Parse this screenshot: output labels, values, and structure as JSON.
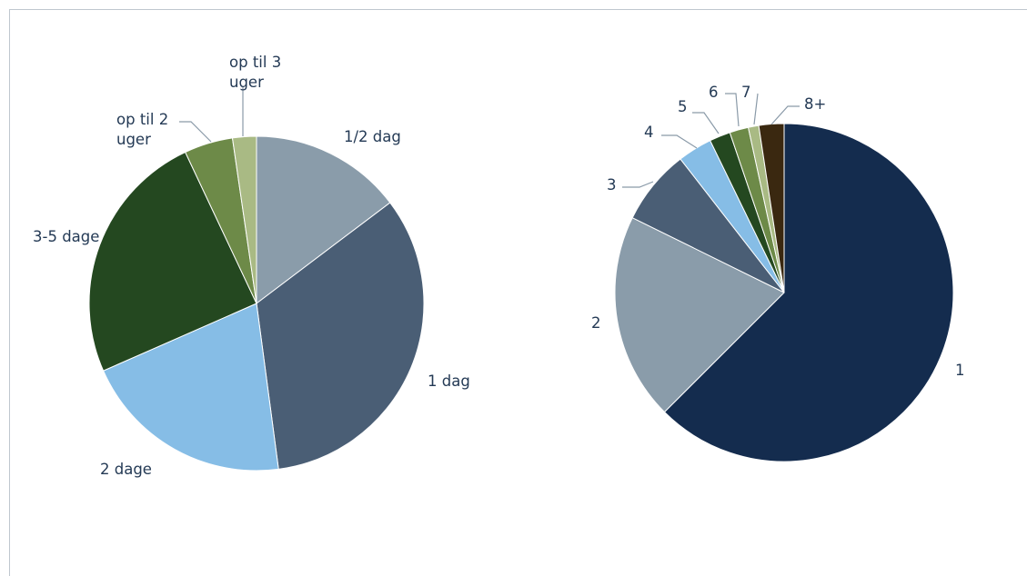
{
  "chart_data": [
    {
      "type": "pie",
      "categories": [
        "1/2 dag",
        "1 dag",
        "2 dage",
        "3-5 dage",
        "op til 2 uger",
        "op til 3 uger"
      ],
      "label_lines": [
        [
          "1/2 dag"
        ],
        [
          "1 dag"
        ],
        [
          "2 dage"
        ],
        [
          "3-5 dage"
        ],
        [
          "op til 2",
          "uger"
        ],
        [
          "op til 3",
          "uger"
        ]
      ],
      "values": [
        14.7,
        33.2,
        20.5,
        24.6,
        4.7,
        2.3
      ],
      "colors": [
        "#8a9caa",
        "#4a5e75",
        "#86bde6",
        "#244820",
        "#6d8a48",
        "#a9ba84"
      ]
    },
    {
      "type": "pie",
      "categories": [
        "1",
        "2",
        "3",
        "4",
        "5",
        "6",
        "7",
        "8+"
      ],
      "label_lines": [
        [
          "1"
        ],
        [
          "2"
        ],
        [
          "3"
        ],
        [
          "4"
        ],
        [
          "5"
        ],
        [
          "6"
        ],
        [
          "7"
        ],
        [
          "8+"
        ]
      ],
      "values": [
        62.5,
        19.8,
        7.2,
        3.3,
        2.0,
        1.8,
        1.0,
        2.4
      ],
      "colors": [
        "#142c4e",
        "#8a9caa",
        "#4a5e75",
        "#86bde6",
        "#244820",
        "#6d8a48",
        "#a9ba84",
        "#3a2810"
      ]
    }
  ]
}
